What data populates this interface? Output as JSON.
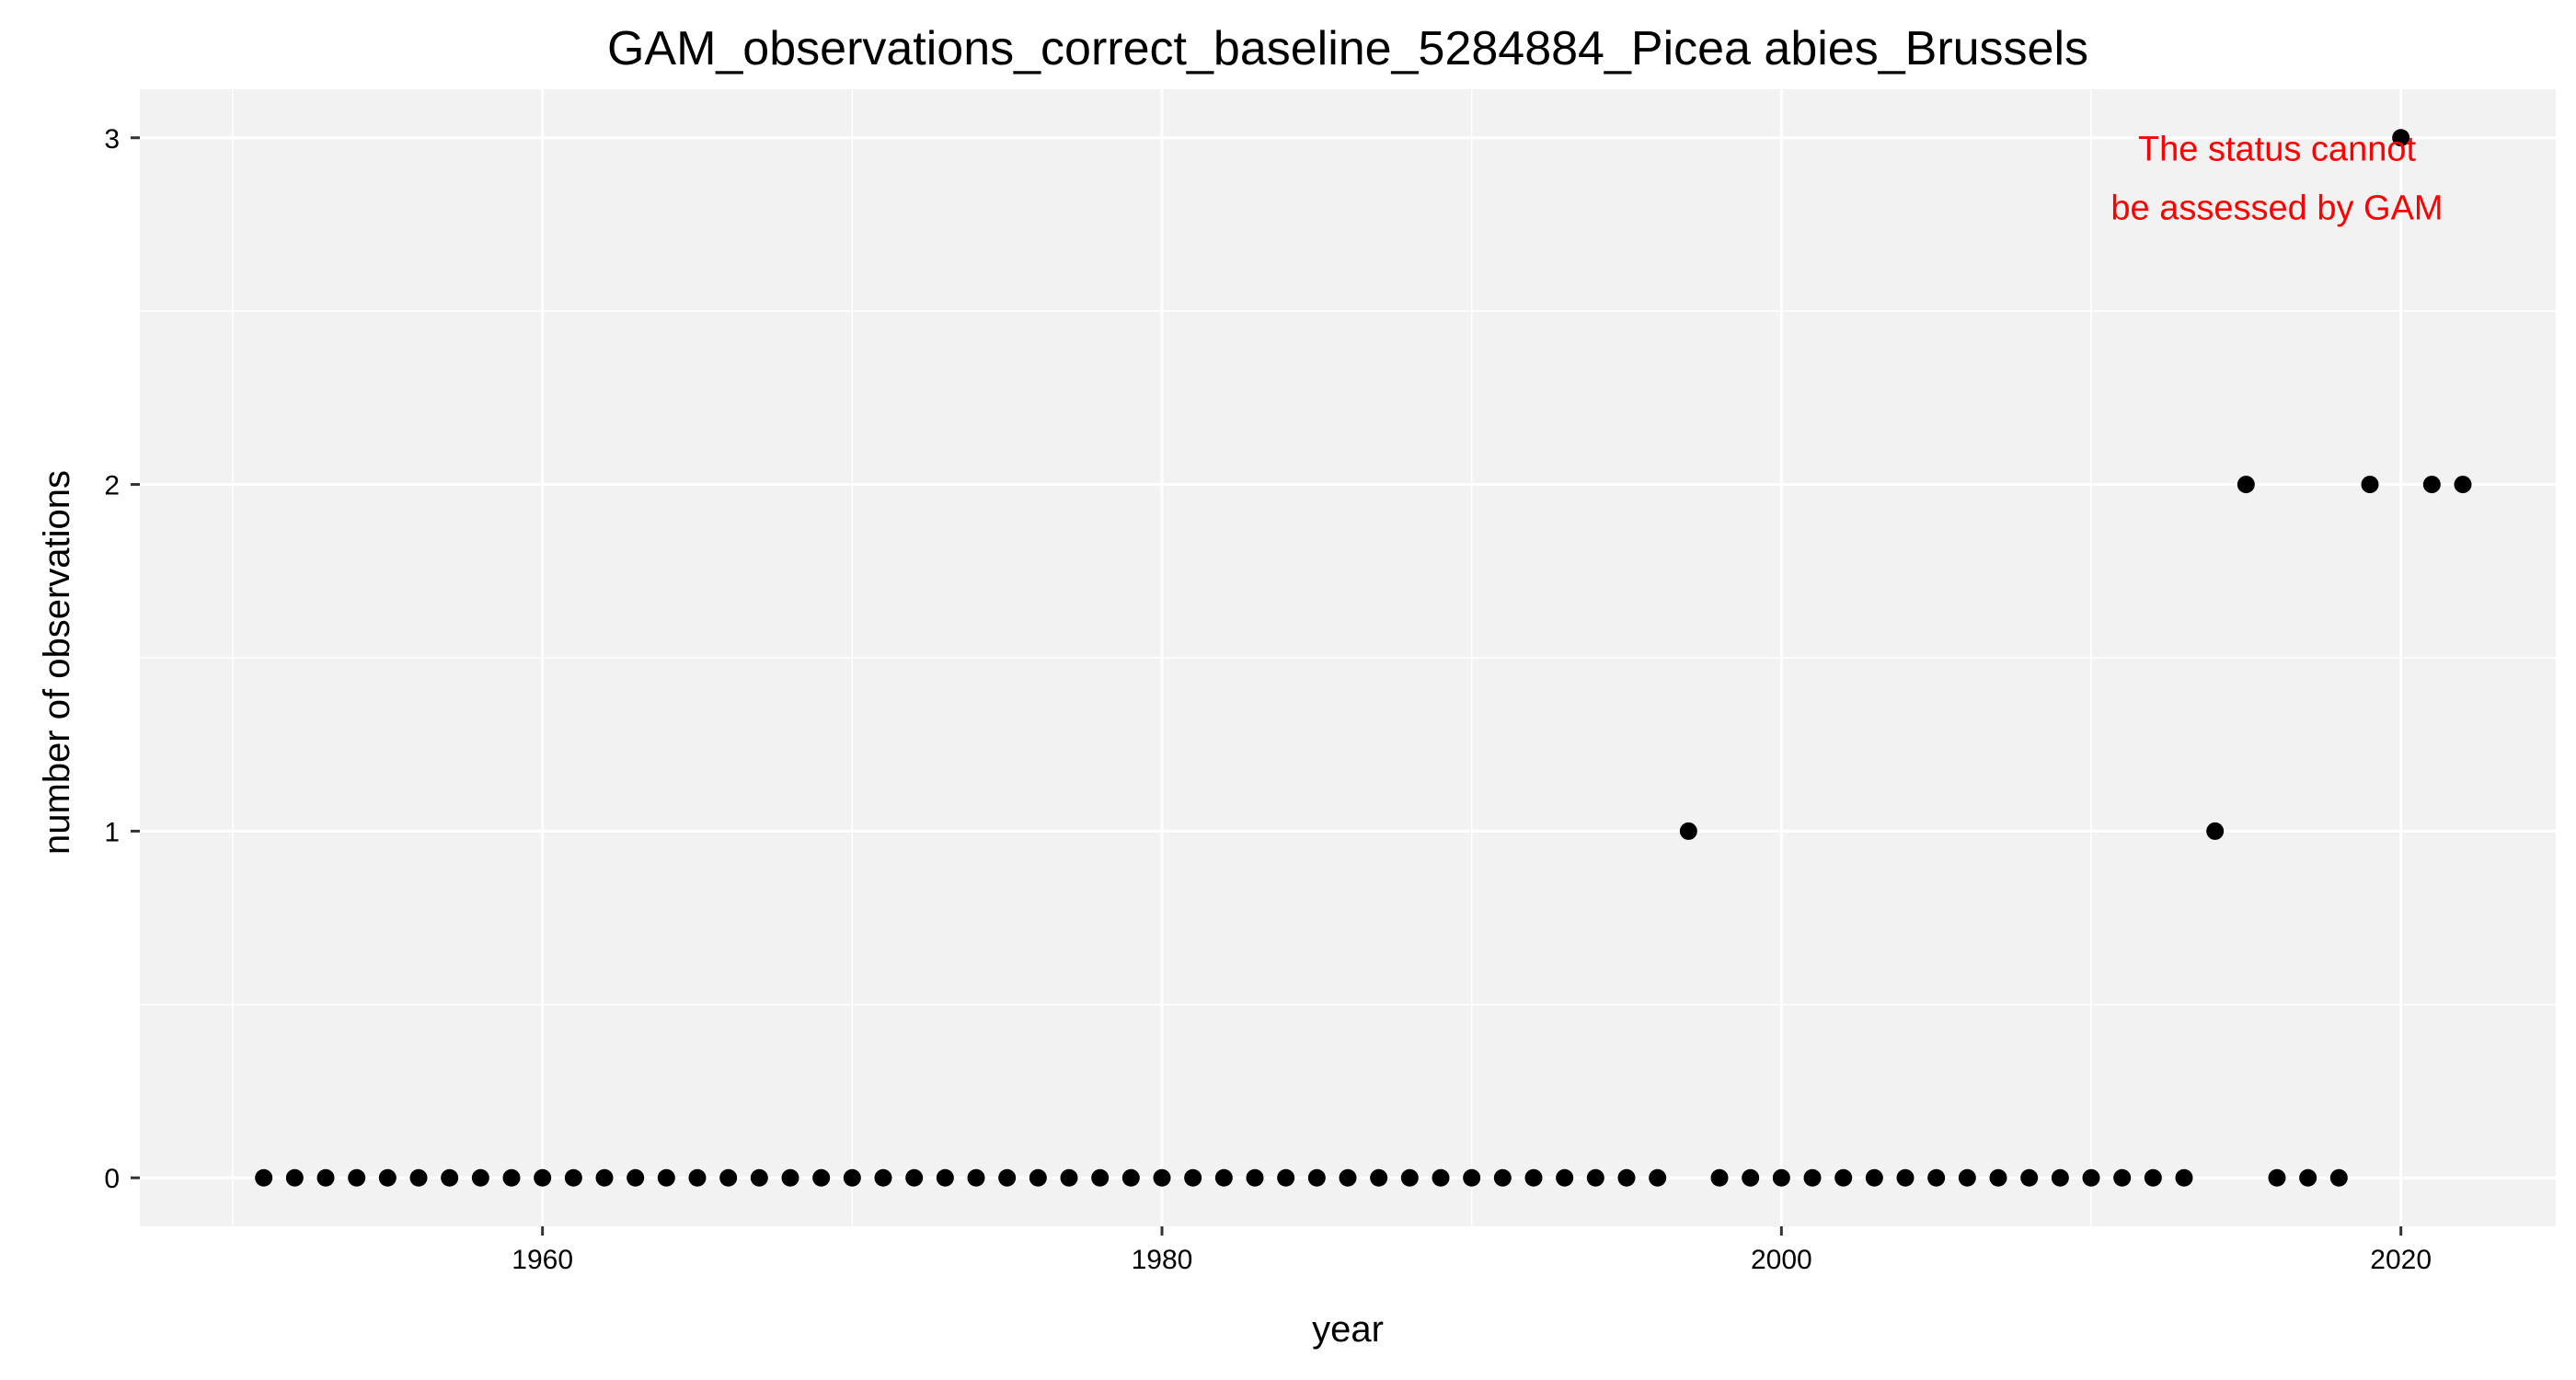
{
  "chart_data": {
    "type": "scatter",
    "title": "GAM_observations_correct_baseline_5284884_Picea abies_Brussels",
    "xlabel": "year",
    "ylabel": "number of observations",
    "xlim": [
      1947,
      2025
    ],
    "ylim": [
      -0.14,
      3.14
    ],
    "x_ticks": [
      1960,
      1980,
      2000,
      2020
    ],
    "x_tick_labels": [
      "1960",
      "1980",
      "2000",
      "2020"
    ],
    "x_minor_ticks": [
      1950,
      1970,
      1990,
      2010
    ],
    "y_ticks": [
      0,
      1,
      2,
      3
    ],
    "y_tick_labels": [
      "0",
      "1",
      "2",
      "3"
    ],
    "y_minor_ticks": [
      0.5,
      1.5,
      2.5
    ],
    "grid": true,
    "legend": "none",
    "colors": {
      "panel_background": "#f2f2f2",
      "grid": "#ffffff",
      "points": "#000000",
      "annotation": "#ff0000",
      "tick": "#333333"
    },
    "annotation": {
      "lines": [
        "The status cannot",
        "be assessed by GAM"
      ],
      "x": 2016,
      "y": 2.85
    },
    "points": [
      {
        "x": 1951,
        "y": 0
      },
      {
        "x": 1952,
        "y": 0
      },
      {
        "x": 1953,
        "y": 0
      },
      {
        "x": 1954,
        "y": 0
      },
      {
        "x": 1955,
        "y": 0
      },
      {
        "x": 1956,
        "y": 0
      },
      {
        "x": 1957,
        "y": 0
      },
      {
        "x": 1958,
        "y": 0
      },
      {
        "x": 1959,
        "y": 0
      },
      {
        "x": 1960,
        "y": 0
      },
      {
        "x": 1961,
        "y": 0
      },
      {
        "x": 1962,
        "y": 0
      },
      {
        "x": 1963,
        "y": 0
      },
      {
        "x": 1964,
        "y": 0
      },
      {
        "x": 1965,
        "y": 0
      },
      {
        "x": 1966,
        "y": 0
      },
      {
        "x": 1967,
        "y": 0
      },
      {
        "x": 1968,
        "y": 0
      },
      {
        "x": 1969,
        "y": 0
      },
      {
        "x": 1970,
        "y": 0
      },
      {
        "x": 1971,
        "y": 0
      },
      {
        "x": 1972,
        "y": 0
      },
      {
        "x": 1973,
        "y": 0
      },
      {
        "x": 1974,
        "y": 0
      },
      {
        "x": 1975,
        "y": 0
      },
      {
        "x": 1976,
        "y": 0
      },
      {
        "x": 1977,
        "y": 0
      },
      {
        "x": 1978,
        "y": 0
      },
      {
        "x": 1979,
        "y": 0
      },
      {
        "x": 1980,
        "y": 0
      },
      {
        "x": 1981,
        "y": 0
      },
      {
        "x": 1982,
        "y": 0
      },
      {
        "x": 1983,
        "y": 0
      },
      {
        "x": 1984,
        "y": 0
      },
      {
        "x": 1985,
        "y": 0
      },
      {
        "x": 1986,
        "y": 0
      },
      {
        "x": 1987,
        "y": 0
      },
      {
        "x": 1988,
        "y": 0
      },
      {
        "x": 1989,
        "y": 0
      },
      {
        "x": 1990,
        "y": 0
      },
      {
        "x": 1991,
        "y": 0
      },
      {
        "x": 1992,
        "y": 0
      },
      {
        "x": 1993,
        "y": 0
      },
      {
        "x": 1994,
        "y": 0
      },
      {
        "x": 1995,
        "y": 0
      },
      {
        "x": 1996,
        "y": 0
      },
      {
        "x": 1997,
        "y": 1
      },
      {
        "x": 1998,
        "y": 0
      },
      {
        "x": 1999,
        "y": 0
      },
      {
        "x": 2000,
        "y": 0
      },
      {
        "x": 2001,
        "y": 0
      },
      {
        "x": 2002,
        "y": 0
      },
      {
        "x": 2003,
        "y": 0
      },
      {
        "x": 2004,
        "y": 0
      },
      {
        "x": 2005,
        "y": 0
      },
      {
        "x": 2006,
        "y": 0
      },
      {
        "x": 2007,
        "y": 0
      },
      {
        "x": 2008,
        "y": 0
      },
      {
        "x": 2009,
        "y": 0
      },
      {
        "x": 2010,
        "y": 0
      },
      {
        "x": 2011,
        "y": 0
      },
      {
        "x": 2012,
        "y": 0
      },
      {
        "x": 2013,
        "y": 0
      },
      {
        "x": 2014,
        "y": 1
      },
      {
        "x": 2015,
        "y": 2
      },
      {
        "x": 2016,
        "y": 0
      },
      {
        "x": 2017,
        "y": 0
      },
      {
        "x": 2018,
        "y": 0
      },
      {
        "x": 2019,
        "y": 2
      },
      {
        "x": 2020,
        "y": 3
      },
      {
        "x": 2021,
        "y": 2
      },
      {
        "x": 2022,
        "y": 2
      }
    ]
  }
}
